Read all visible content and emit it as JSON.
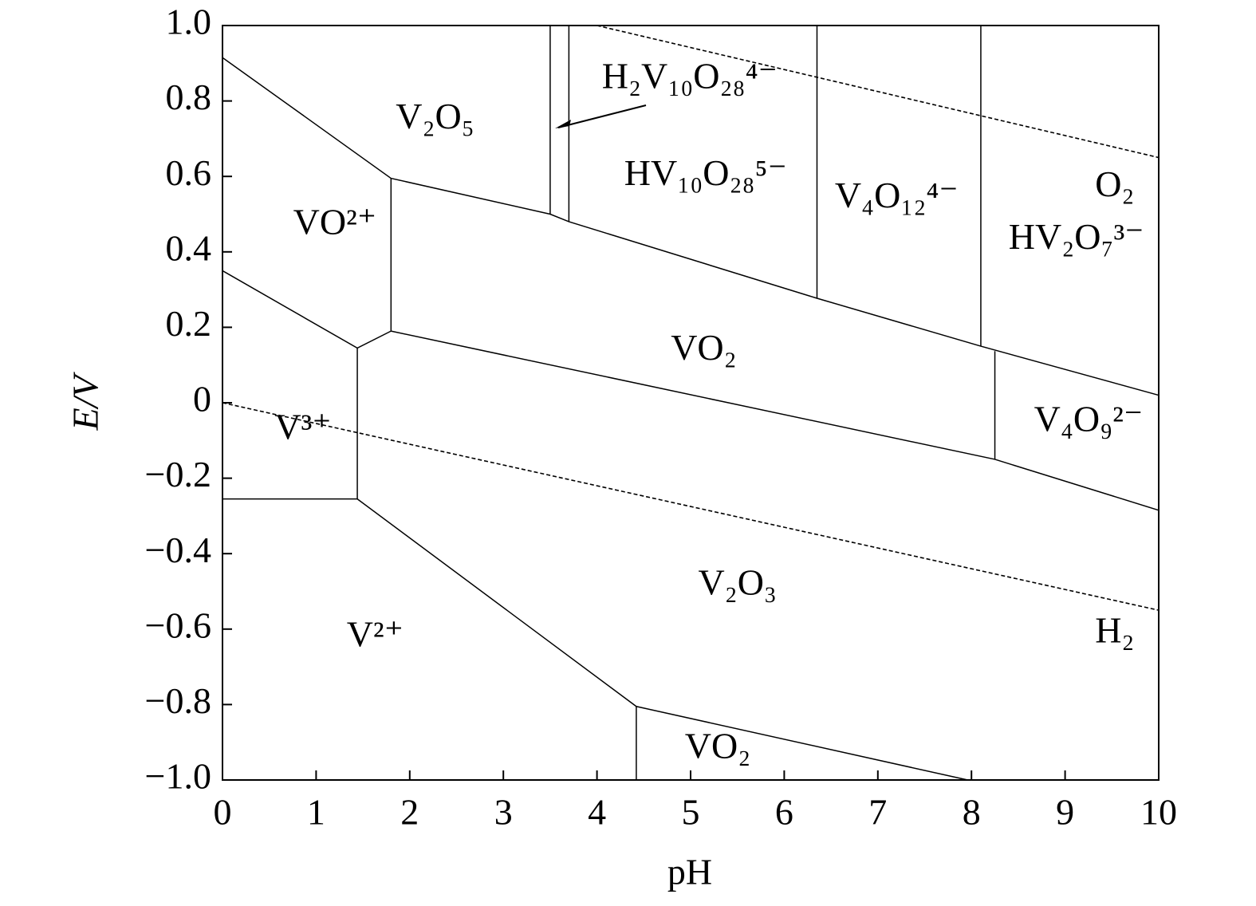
{
  "chart_data": {
    "type": "line",
    "x_label": "pH",
    "y_label": "E/V",
    "xlim": [
      0,
      10
    ],
    "ylim": [
      -1,
      1
    ],
    "xticks": [
      0,
      1,
      2,
      3,
      4,
      5,
      6,
      7,
      8,
      9,
      10
    ],
    "yticks": [
      {
        "value": 1,
        "label": "1.0"
      },
      0.8,
      0.6,
      0.4,
      0.2,
      0,
      {
        "value": -0.2,
        "label": "−0.2"
      },
      {
        "value": -0.4,
        "label": "−0.4"
      },
      {
        "value": -0.6,
        "label": "−0.6"
      },
      {
        "value": -0.8,
        "label": "−0.8"
      },
      {
        "value": -1,
        "label": "−1.0"
      }
    ],
    "color": "#000000",
    "series": [
      {
        "x": [
          0,
          1.8,
          3.5,
          3.7,
          6.35,
          8.1,
          10
        ],
        "values": [
          0.915,
          0.595,
          0.5,
          0.48,
          0.277,
          0.15,
          0.02
        ]
      },
      {
        "x": [
          1.8,
          1.8
        ],
        "values": [
          0.595,
          0.19
        ]
      },
      {
        "x": [
          3.5,
          3.5
        ],
        "values": [
          1,
          0.5
        ]
      },
      {
        "x": [
          3.7,
          3.7
        ],
        "values": [
          1,
          0.48
        ]
      },
      {
        "x": [
          6.35,
          6.35
        ],
        "values": [
          1,
          0.277
        ]
      },
      {
        "x": [
          8.1,
          8.1
        ],
        "values": [
          1,
          0.15
        ]
      },
      {
        "x": [
          0,
          1.44,
          1.8
        ],
        "values": [
          0.35,
          0.145,
          0.19
        ]
      },
      {
        "x": [
          1.8,
          8.25,
          10
        ],
        "values": [
          0.19,
          -0.15,
          -0.285
        ]
      },
      {
        "x": [
          1.44,
          1.44
        ],
        "values": [
          0.145,
          -0.255
        ]
      },
      {
        "x": [
          8.25,
          8.25
        ],
        "values": [
          0.137,
          -0.15
        ]
      },
      {
        "x": [
          0,
          1.44
        ],
        "values": [
          -0.255,
          -0.255
        ]
      },
      {
        "x": [
          1.44,
          4.42,
          7.96
        ],
        "values": [
          -0.255,
          -0.805,
          -1
        ]
      },
      {
        "x": [
          4.42,
          4.42
        ],
        "values": [
          -0.805,
          -1
        ]
      },
      {
        "x": [
          4,
          10
        ],
        "values": [
          1,
          0.65
        ],
        "dashed": true
      },
      {
        "x": [
          0,
          10
        ],
        "values": [
          0,
          -0.55
        ],
        "dashed": true
      }
    ],
    "annotations": [
      {
        "text": "V₂O₅",
        "x": 2.27,
        "y": 0.75
      },
      {
        "text": "H₂V₁₀O₂₈⁴⁻",
        "x": 4.99,
        "y": 0.856
      },
      {
        "text": "HV₁₀O₂₈⁵⁻",
        "x": 5.16,
        "y": 0.6
      },
      {
        "text": "V₄O₁₂⁴⁻",
        "x": 7.2,
        "y": 0.54
      },
      {
        "text": "O₂",
        "x": 9.53,
        "y": 0.57
      },
      {
        "text": "HV₂O₇³⁻",
        "x": 9.12,
        "y": 0.43
      },
      {
        "text": "VO²⁺",
        "x": 1.2,
        "y": 0.47
      },
      {
        "text": "VO₂",
        "x": 5.14,
        "y": 0.137
      },
      {
        "text": "V₄O₉²⁻",
        "x": 9.25,
        "y": -0.053
      },
      {
        "text": "V³⁺",
        "x": 0.86,
        "y": -0.074
      },
      {
        "text": "V₂O₃",
        "x": 5.5,
        "y": -0.486
      },
      {
        "text": "V²⁺",
        "x": 1.63,
        "y": -0.624
      },
      {
        "text": "H₂",
        "x": 9.53,
        "y": -0.613
      },
      {
        "text": "VO₂",
        "x": 5.29,
        "y": -0.92
      }
    ]
  }
}
